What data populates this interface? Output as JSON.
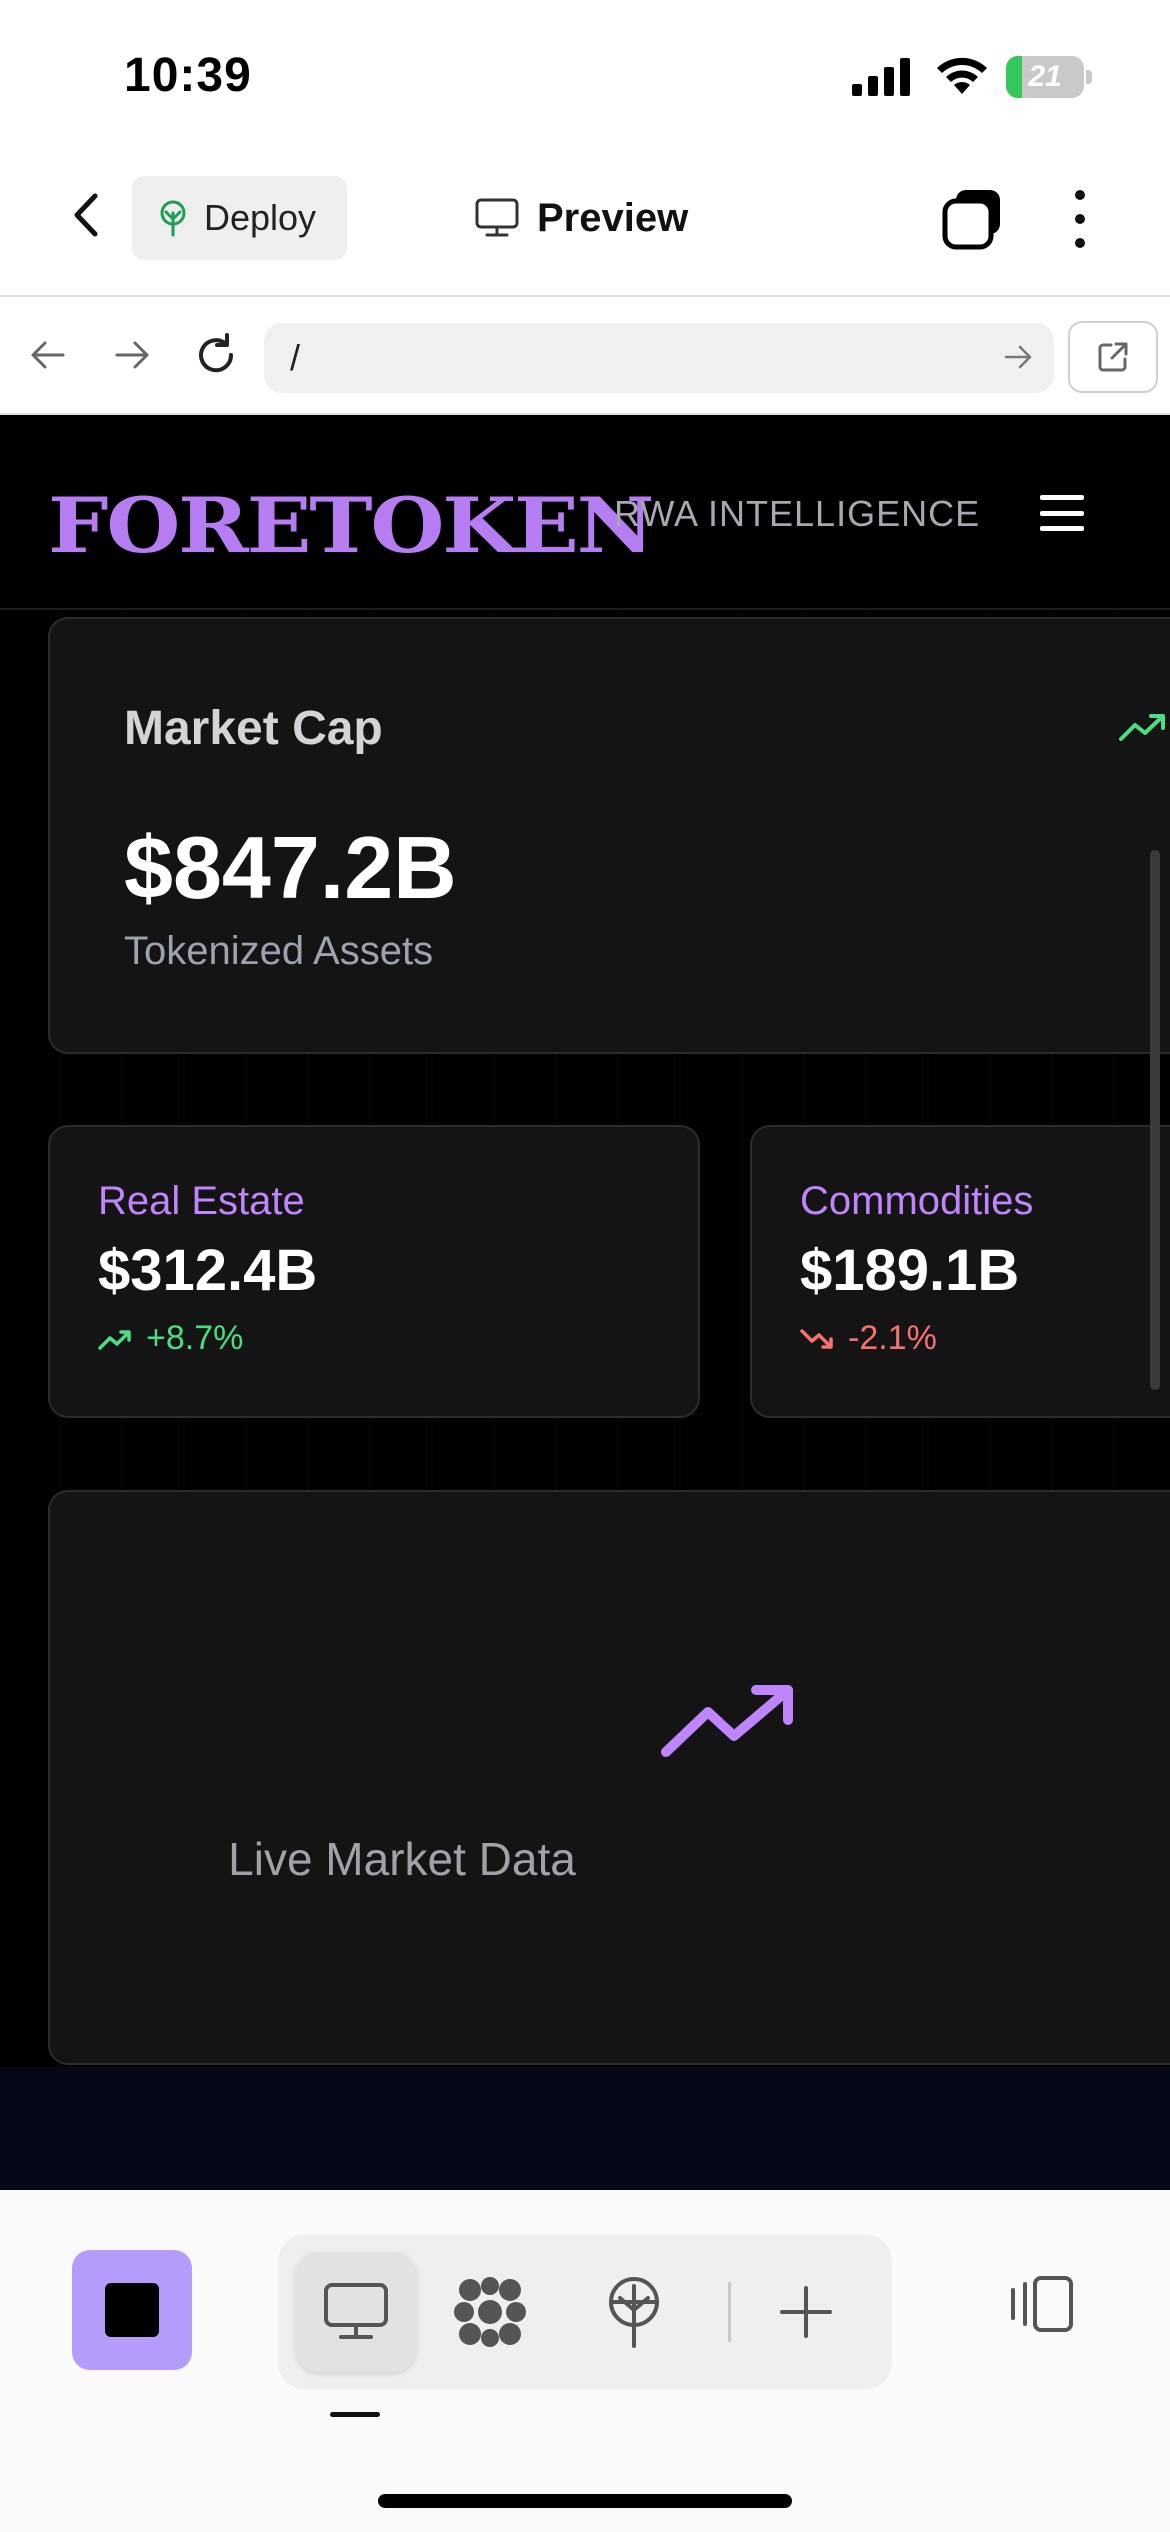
{
  "status_bar": {
    "time": "10:39",
    "battery_level": "21",
    "battery_fraction": 0.21
  },
  "toolbar": {
    "deploy_label": "Deploy",
    "preview_label": "Preview"
  },
  "url_bar": {
    "url": "/"
  },
  "site": {
    "logo": "FORETOKEN",
    "tagline": "RWA INTELLIGENCE"
  },
  "market_cap": {
    "label": "Market Cap",
    "value": "$847.2B",
    "subtitle": "Tokenized Assets"
  },
  "stats": [
    {
      "label": "Real Estate",
      "value": "$312.4B",
      "change": "+8.7%",
      "direction": "up"
    },
    {
      "label": "Commodities",
      "value": "$189.1B",
      "change": "-2.1%",
      "direction": "down"
    }
  ],
  "live_data": {
    "label": "Live Market Data"
  },
  "colors": {
    "accent": "#b67cf2",
    "positive": "#4ade80",
    "negative": "#f87171",
    "stop_button": "#b69cfa"
  },
  "icons": {
    "back": "chevron-left-icon",
    "deploy": "deploy-tree-icon",
    "preview": "monitor-icon",
    "tabs": "tabs-icon",
    "more": "more-vertical-icon",
    "nav_back": "arrow-left-icon",
    "nav_forward": "arrow-right-icon",
    "reload": "reload-icon",
    "go": "arrow-right-icon",
    "external": "external-link-icon",
    "menu": "hamburger-menu-icon",
    "trend_up": "trending-up-icon",
    "trend_down": "trending-down-icon",
    "stop": "stop-icon",
    "packages": "packages-icon",
    "deploy_tool": "deploy-icon",
    "add": "plus-icon",
    "split_view": "split-view-icon"
  }
}
